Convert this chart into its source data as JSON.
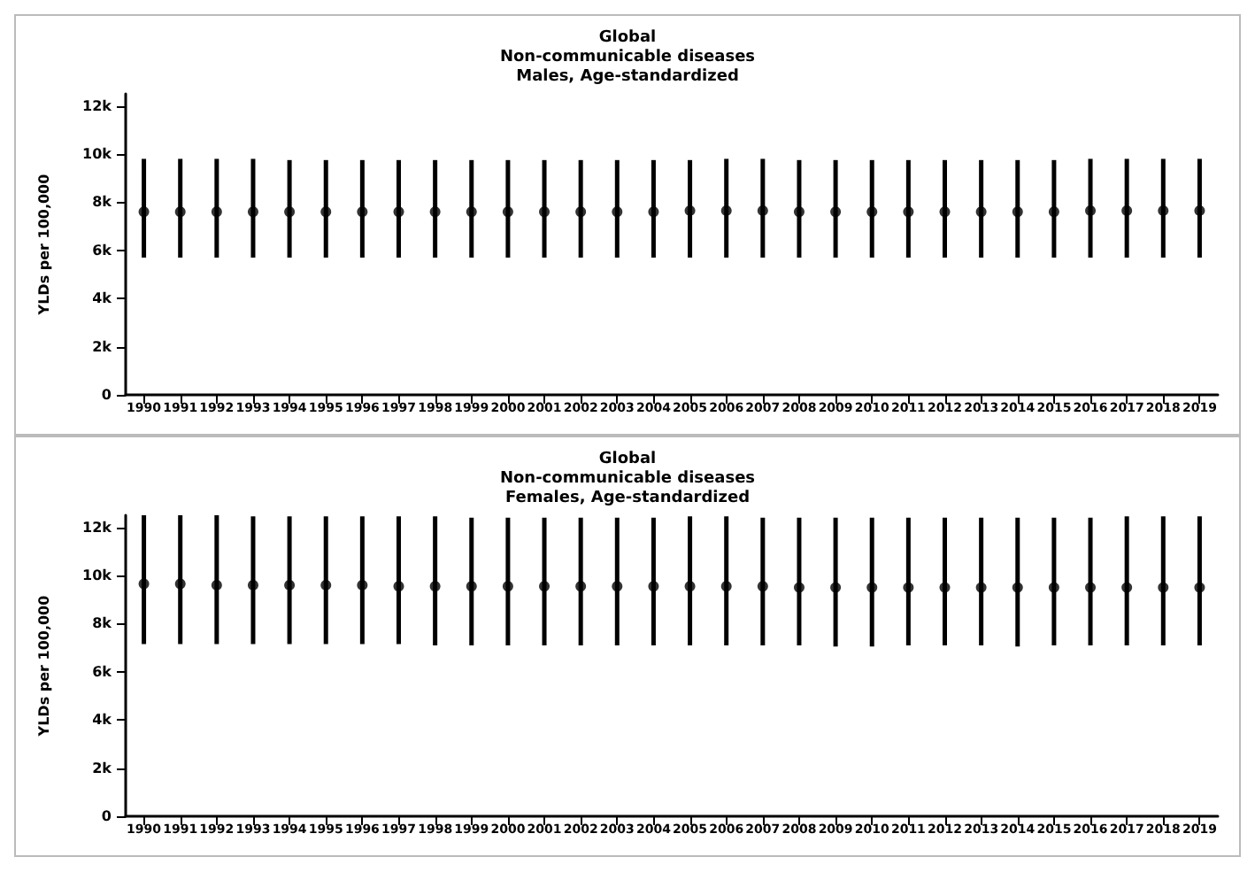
{
  "chart_data": [
    {
      "type": "scatter",
      "title": "Global",
      "subtitle": "Non-communicable diseases\nMales, Age-standardized",
      "ylabel": "YLDs per 100,000",
      "categories": [
        "1990",
        "1991",
        "1992",
        "1993",
        "1994",
        "1995",
        "1996",
        "1997",
        "1998",
        "1999",
        "2000",
        "2001",
        "2002",
        "2003",
        "2004",
        "2005",
        "2006",
        "2007",
        "2008",
        "2009",
        "2010",
        "2011",
        "2012",
        "2013",
        "2014",
        "2015",
        "2016",
        "2017",
        "2018",
        "2019"
      ],
      "series": [
        {
          "color": "#000000",
          "values": [
            7600,
            7600,
            7600,
            7600,
            7600,
            7600,
            7600,
            7600,
            7600,
            7600,
            7600,
            7600,
            7600,
            7600,
            7600,
            7650,
            7650,
            7650,
            7600,
            7600,
            7600,
            7600,
            7600,
            7600,
            7600,
            7600,
            7650,
            7650,
            7650,
            7650
          ],
          "errors": [
            [
              5700,
              9800
            ],
            [
              5700,
              9800
            ],
            [
              5700,
              9800
            ],
            [
              5700,
              9800
            ],
            [
              5700,
              9750
            ],
            [
              5700,
              9750
            ],
            [
              5700,
              9750
            ],
            [
              5700,
              9750
            ],
            [
              5700,
              9750
            ],
            [
              5700,
              9750
            ],
            [
              5700,
              9750
            ],
            [
              5700,
              9750
            ],
            [
              5700,
              9750
            ],
            [
              5700,
              9750
            ],
            [
              5700,
              9750
            ],
            [
              5700,
              9750
            ],
            [
              5700,
              9800
            ],
            [
              5700,
              9800
            ],
            [
              5700,
              9750
            ],
            [
              5700,
              9750
            ],
            [
              5700,
              9750
            ],
            [
              5700,
              9750
            ],
            [
              5700,
              9750
            ],
            [
              5700,
              9750
            ],
            [
              5700,
              9750
            ],
            [
              5700,
              9750
            ],
            [
              5700,
              9800
            ],
            [
              5700,
              9800
            ],
            [
              5700,
              9800
            ],
            [
              5700,
              9800
            ]
          ]
        }
      ],
      "ylim": [
        0,
        12500
      ],
      "yticks": [
        0,
        {
          "value": 2000,
          "label": "2k"
        },
        {
          "value": 4000,
          "label": "4k"
        },
        {
          "value": 6000,
          "label": "6k"
        },
        {
          "value": 8000,
          "label": "8k"
        },
        {
          "value": 10000,
          "label": "10k"
        },
        {
          "value": 12000,
          "label": "12k"
        }
      ],
      "marker": "circle",
      "grid": false
    },
    {
      "type": "scatter",
      "title": "Global",
      "subtitle": "Non-communicable diseases\nFemales, Age-standardized",
      "ylabel": "YLDs per 100,000",
      "categories": [
        "1990",
        "1991",
        "1992",
        "1993",
        "1994",
        "1995",
        "1996",
        "1997",
        "1998",
        "1999",
        "2000",
        "2001",
        "2002",
        "2003",
        "2004",
        "2005",
        "2006",
        "2007",
        "2008",
        "2009",
        "2010",
        "2011",
        "2012",
        "2013",
        "2014",
        "2015",
        "2016",
        "2017",
        "2018",
        "2019"
      ],
      "series": [
        {
          "color": "#000000",
          "values": [
            9650,
            9650,
            9600,
            9600,
            9600,
            9600,
            9600,
            9550,
            9550,
            9550,
            9550,
            9550,
            9550,
            9550,
            9550,
            9550,
            9550,
            9550,
            9500,
            9500,
            9500,
            9500,
            9500,
            9500,
            9500,
            9500,
            9500,
            9500,
            9500,
            9500
          ],
          "errors": [
            [
              7150,
              12500
            ],
            [
              7150,
              12500
            ],
            [
              7150,
              12500
            ],
            [
              7150,
              12450
            ],
            [
              7150,
              12450
            ],
            [
              7150,
              12450
            ],
            [
              7150,
              12450
            ],
            [
              7150,
              12450
            ],
            [
              7100,
              12450
            ],
            [
              7100,
              12400
            ],
            [
              7100,
              12400
            ],
            [
              7100,
              12400
            ],
            [
              7100,
              12400
            ],
            [
              7100,
              12400
            ],
            [
              7100,
              12400
            ],
            [
              7100,
              12450
            ],
            [
              7100,
              12450
            ],
            [
              7100,
              12400
            ],
            [
              7100,
              12400
            ],
            [
              7050,
              12400
            ],
            [
              7050,
              12400
            ],
            [
              7100,
              12400
            ],
            [
              7100,
              12400
            ],
            [
              7100,
              12400
            ],
            [
              7050,
              12400
            ],
            [
              7100,
              12400
            ],
            [
              7100,
              12400
            ],
            [
              7100,
              12450
            ],
            [
              7100,
              12450
            ],
            [
              7100,
              12450
            ]
          ]
        }
      ],
      "ylim": [
        0,
        12500
      ],
      "yticks": [
        0,
        {
          "value": 2000,
          "label": "2k"
        },
        {
          "value": 4000,
          "label": "4k"
        },
        {
          "value": 6000,
          "label": "6k"
        },
        {
          "value": 8000,
          "label": "8k"
        },
        {
          "value": 10000,
          "label": "10k"
        },
        {
          "value": 12000,
          "label": "12k"
        }
      ],
      "marker": "circle",
      "grid": false
    }
  ]
}
